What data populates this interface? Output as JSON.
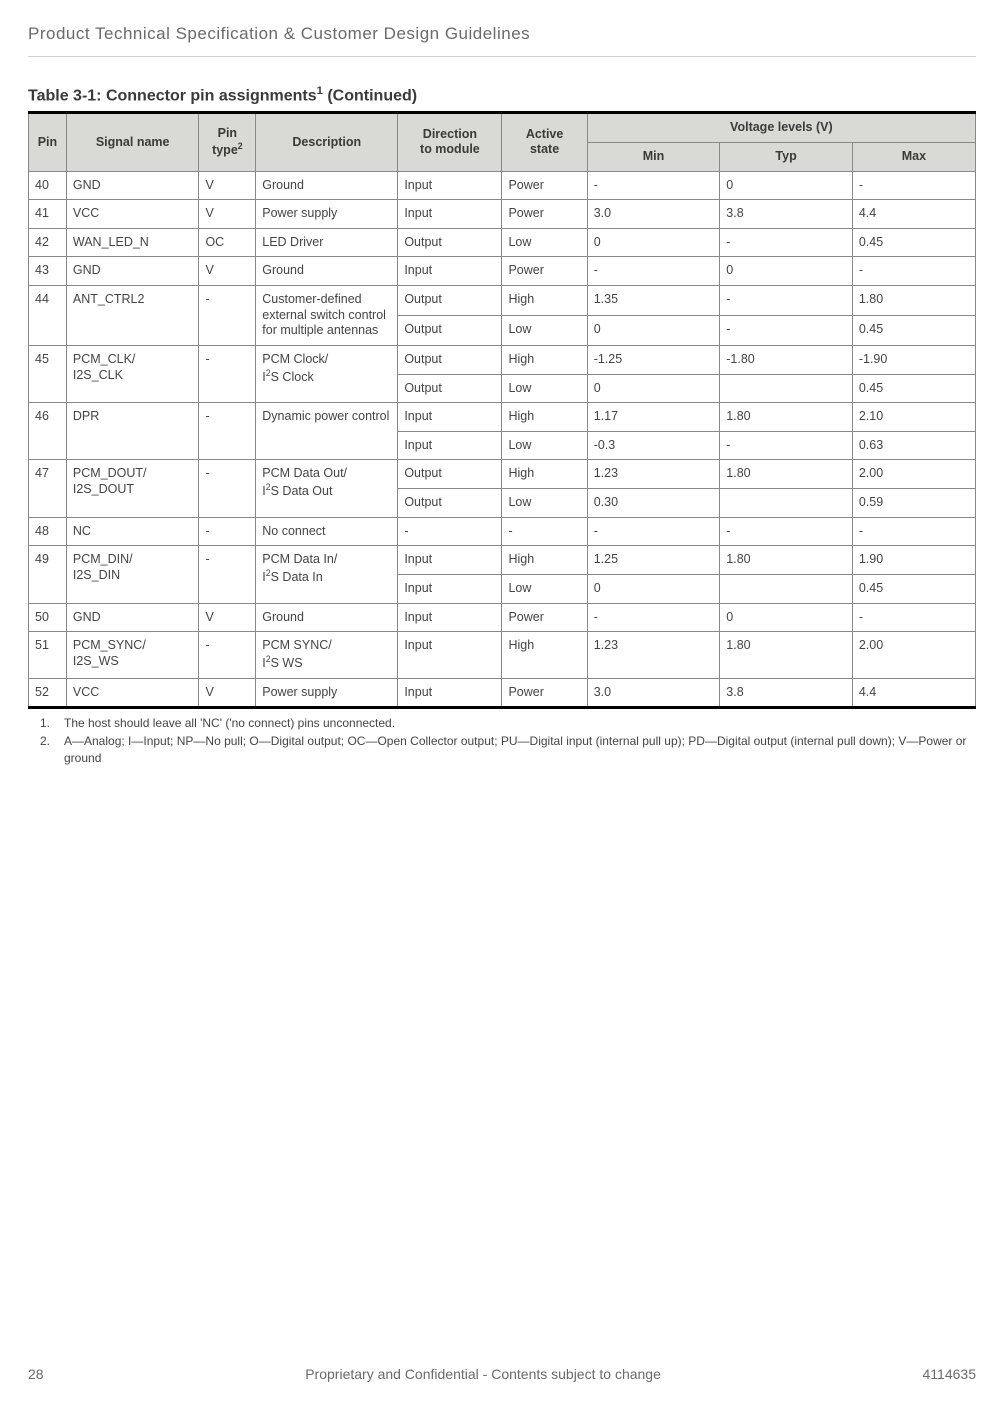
{
  "doc_title": "Product Technical Specification & Customer Design Guidelines",
  "table_caption_prefix": "Table 3-1:  ",
  "table_caption_main": "Connector pin assignments",
  "table_caption_sup": "1",
  "table_caption_suffix": " (Continued)",
  "headers": {
    "pin": "Pin",
    "signal": "Signal name",
    "pintype_line1": "Pin",
    "pintype_line2_prefix": "type",
    "pintype_sup": "2",
    "desc": "Description",
    "dir_line1": "Direction",
    "dir_line2": "to module",
    "active_line1": "Active",
    "active_line2": "state",
    "vgroup": "Voltage levels (V)",
    "vmin": "Min",
    "vtyp": "Typ",
    "vmax": "Max"
  },
  "col_widths_pct": {
    "pin": 4,
    "signal": 14,
    "pintype": 6,
    "desc": 15,
    "dir": 11,
    "active": 9,
    "vmin": 14,
    "vtyp": 14,
    "vmax": 13
  },
  "rows": [
    {
      "pin": "40",
      "signal": "GND",
      "type": "V",
      "desc": "Ground",
      "sub": [
        {
          "dir": "Input",
          "act": "Power",
          "min": "-",
          "typ": "0",
          "max": "-"
        }
      ]
    },
    {
      "pin": "41",
      "signal": "VCC",
      "type": "V",
      "desc": "Power supply",
      "sub": [
        {
          "dir": "Input",
          "act": "Power",
          "min": "3.0",
          "typ": "3.8",
          "max": "4.4"
        }
      ]
    },
    {
      "pin": "42",
      "signal": "WAN_LED_N",
      "type": "OC",
      "desc": "LED Driver",
      "sub": [
        {
          "dir": "Output",
          "act": "Low",
          "min": "0",
          "typ": "-",
          "max": "0.45"
        }
      ]
    },
    {
      "pin": "43",
      "signal": "GND",
      "type": "V",
      "desc": "Ground",
      "sub": [
        {
          "dir": "Input",
          "act": "Power",
          "min": "-",
          "typ": "0",
          "max": "-"
        }
      ]
    },
    {
      "pin": "44",
      "signal": "ANT_CTRL2",
      "type": "-",
      "desc": "Customer-defined external switch control for multiple antennas",
      "sub": [
        {
          "dir": "Output",
          "act": "High",
          "min": "1.35",
          "typ": "-",
          "max": "1.80"
        },
        {
          "dir": "Output",
          "act": "Low",
          "min": "0",
          "typ": "-",
          "max": "0.45"
        }
      ]
    },
    {
      "pin": "45",
      "signal_html": "PCM_CLK/<br>I2S_CLK",
      "type": "-",
      "desc_html": "PCM Clock/<br>I<sup>2</sup>S Clock",
      "sub": [
        {
          "dir": "Output",
          "act": "High",
          "min": "-1.25",
          "typ": "-1.80",
          "max": "-1.90"
        },
        {
          "dir": "Output",
          "act": "Low",
          "min": "0",
          "typ": "",
          "max": "0.45"
        }
      ]
    },
    {
      "pin": "46",
      "signal": "DPR",
      "type": "-",
      "desc": "Dynamic power control",
      "sub": [
        {
          "dir": "Input",
          "act": "High",
          "min": "1.17",
          "typ": "1.80",
          "max": "2.10"
        },
        {
          "dir": "Input",
          "act": "Low",
          "min": "-0.3",
          "typ": "-",
          "max": "0.63"
        }
      ]
    },
    {
      "pin": "47",
      "signal_html": "PCM_DOUT/<br>I2S_DOUT",
      "type": "-",
      "desc_html": "PCM Data Out/<br>I<sup>2</sup>S Data Out",
      "sub": [
        {
          "dir": "Output",
          "act": "High",
          "min": "1.23",
          "typ": "1.80",
          "max": "2.00"
        },
        {
          "dir": "Output",
          "act": "Low",
          "min": "0.30",
          "typ": "",
          "max": "0.59"
        }
      ]
    },
    {
      "pin": "48",
      "signal": "NC",
      "type": "-",
      "desc": "No connect",
      "sub": [
        {
          "dir": "-",
          "act": "-",
          "min": "-",
          "typ": "-",
          "max": "-"
        }
      ]
    },
    {
      "pin": "49",
      "signal_html": "PCM_DIN/<br>I2S_DIN",
      "type": "-",
      "desc_html": "PCM Data In/<br>I<sup>2</sup>S Data In",
      "sub": [
        {
          "dir": "Input",
          "act": "High",
          "min": "1.25",
          "typ": "1.80",
          "max": "1.90"
        },
        {
          "dir": "Input",
          "act": "Low",
          "min": "0",
          "typ": "",
          "max": "0.45"
        }
      ]
    },
    {
      "pin": "50",
      "signal": "GND",
      "type": "V",
      "desc": "Ground",
      "sub": [
        {
          "dir": "Input",
          "act": "Power",
          "min": "-",
          "typ": "0",
          "max": "-"
        }
      ]
    },
    {
      "pin": "51",
      "signal_html": "PCM_SYNC/<br>I2S_WS",
      "type": "-",
      "desc_html": "PCM SYNC/<br>I<sup>2</sup>S WS",
      "sub": [
        {
          "dir": "Input",
          "act": "High",
          "min": "1.23",
          "typ": "1.80",
          "max": "2.00"
        }
      ]
    },
    {
      "pin": "52",
      "signal": "VCC",
      "type": "V",
      "desc": "Power supply",
      "sub": [
        {
          "dir": "Input",
          "act": "Power",
          "min": "3.0",
          "typ": "3.8",
          "max": "4.4"
        }
      ]
    }
  ],
  "footnotes": [
    {
      "num": "1.",
      "text": "The host should leave all 'NC' ('no connect) pins unconnected."
    },
    {
      "num": "2.",
      "text": "A—Analog; I—Input; NP—No pull; O—Digital output; OC—Open Collector output; PU—Digital input (internal pull up); PD—Digital output (internal pull down); V—Power or ground"
    }
  ],
  "footer": {
    "page": "28",
    "center": "Proprietary and Confidential - Contents subject to change",
    "docnum": "4114635"
  },
  "colors": {
    "header_bg": "#d9d9d5",
    "border": "#888888",
    "thick_border": "#000000",
    "text": "#4a4a4a"
  }
}
